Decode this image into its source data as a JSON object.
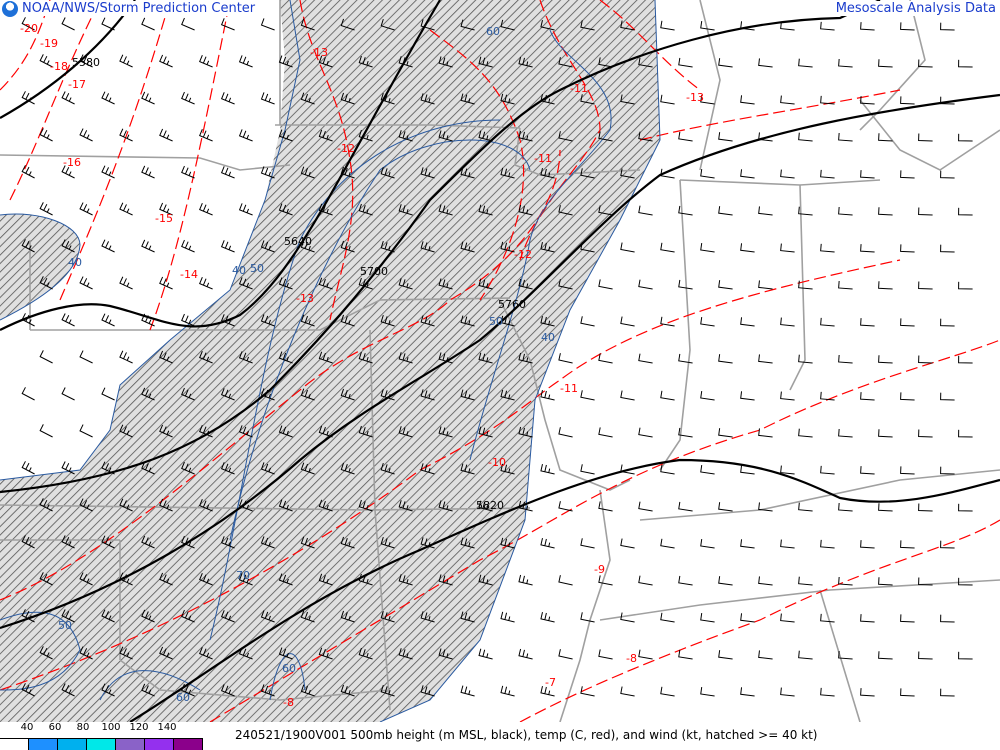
{
  "header": {
    "left_title": "NOAA/NWS/Storm Prediction Center",
    "right_title": "Mesoscale Analysis Data",
    "logo": "noaa-logo"
  },
  "footer": {
    "caption": "240521/1900V001 500mb height (m MSL, black), temp (C, red), and wind (kt, hatched >= 40 kt)",
    "legend_ticks": [
      "40",
      "60",
      "80",
      "100",
      "120",
      "140"
    ],
    "legend_colors": [
      "#ffffff",
      "#1e90ff",
      "#00b0ee",
      "#00e8e8",
      "#8a62c8",
      "#9430ee",
      "#8b008b"
    ]
  },
  "map": {
    "height_labels": [
      "5580",
      "5640",
      "5700",
      "5760",
      "5820"
    ],
    "temp_labels": [
      "-20",
      "-19",
      "-18",
      "-17",
      "-16",
      "-15",
      "-14",
      "-13",
      "-13",
      "-13",
      "-12",
      "-12",
      "-11",
      "-11",
      "-11",
      "-10",
      "-9",
      "-8",
      "-7",
      "-8"
    ],
    "isotach_labels": [
      "60",
      "40",
      "40",
      "50",
      "50",
      "40",
      "50",
      "70",
      "60",
      "60"
    ],
    "colors": {
      "height": "#000000",
      "temp": "#ff0000",
      "isotach": "#2a5aa0",
      "borders": "#a0a0a0",
      "hatch": "#555555"
    },
    "hatch_threshold_kt": 40
  }
}
